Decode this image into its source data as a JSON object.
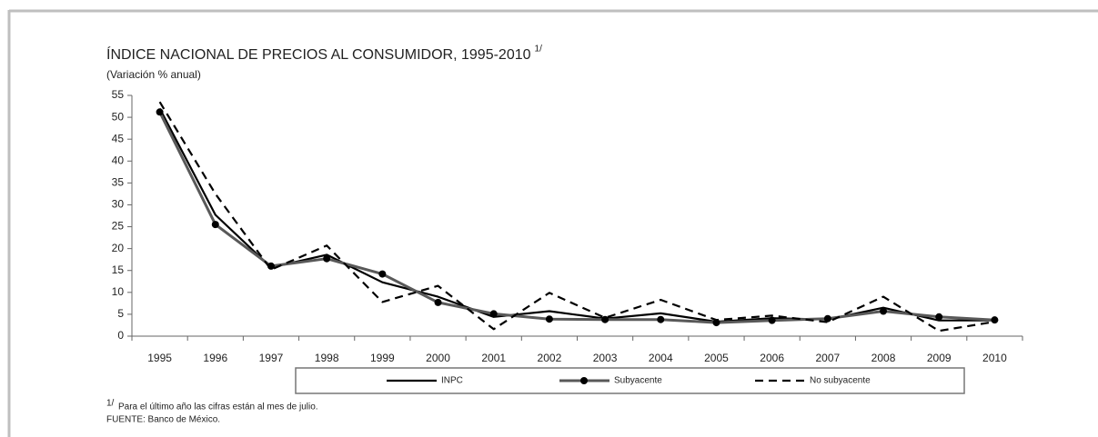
{
  "chart_data": {
    "type": "line",
    "title": "ÍNDICE NACIONAL DE PRECIOS AL CONSUMIDOR, 1995-2010",
    "title_note": "1/",
    "subtitle": "(Variación % anual)",
    "categories": [
      "1995",
      "1996",
      "1997",
      "1998",
      "1999",
      "2000",
      "2001",
      "2002",
      "2003",
      "2004",
      "2005",
      "2006",
      "2007",
      "2008",
      "2009",
      "2010"
    ],
    "series": [
      {
        "name": "INPC",
        "color": "#000000",
        "line_style": "solid",
        "marker": "none",
        "values": [
          52.0,
          27.7,
          15.7,
          18.6,
          12.3,
          9.0,
          4.4,
          5.7,
          4.0,
          5.2,
          3.3,
          4.1,
          3.8,
          6.5,
          3.6,
          3.6
        ]
      },
      {
        "name": "Subyacente",
        "color": "#595959",
        "line_style": "solid",
        "marker": "circle",
        "values": [
          51.2,
          25.5,
          16.0,
          17.7,
          14.2,
          7.7,
          5.1,
          3.9,
          3.8,
          3.8,
          3.1,
          3.6,
          4.0,
          5.7,
          4.4,
          3.7
        ]
      },
      {
        "name": "No subyacente",
        "color": "#000000",
        "line_style": "dashed",
        "marker": "none",
        "values": [
          53.5,
          32.5,
          15.2,
          20.7,
          7.8,
          11.5,
          1.6,
          9.9,
          4.2,
          8.3,
          3.7,
          4.7,
          3.2,
          9.0,
          1.2,
          3.3
        ]
      }
    ],
    "ylim": [
      0,
      55
    ],
    "yticks": [
      0,
      5,
      10,
      15,
      20,
      25,
      30,
      35,
      40,
      45,
      50,
      55
    ],
    "grid": false,
    "legend": "bottom",
    "footnote_marker": "1/",
    "footnote": "Para el último año las cifras están al mes de julio.",
    "source": "FUENTE: Banco de México."
  }
}
